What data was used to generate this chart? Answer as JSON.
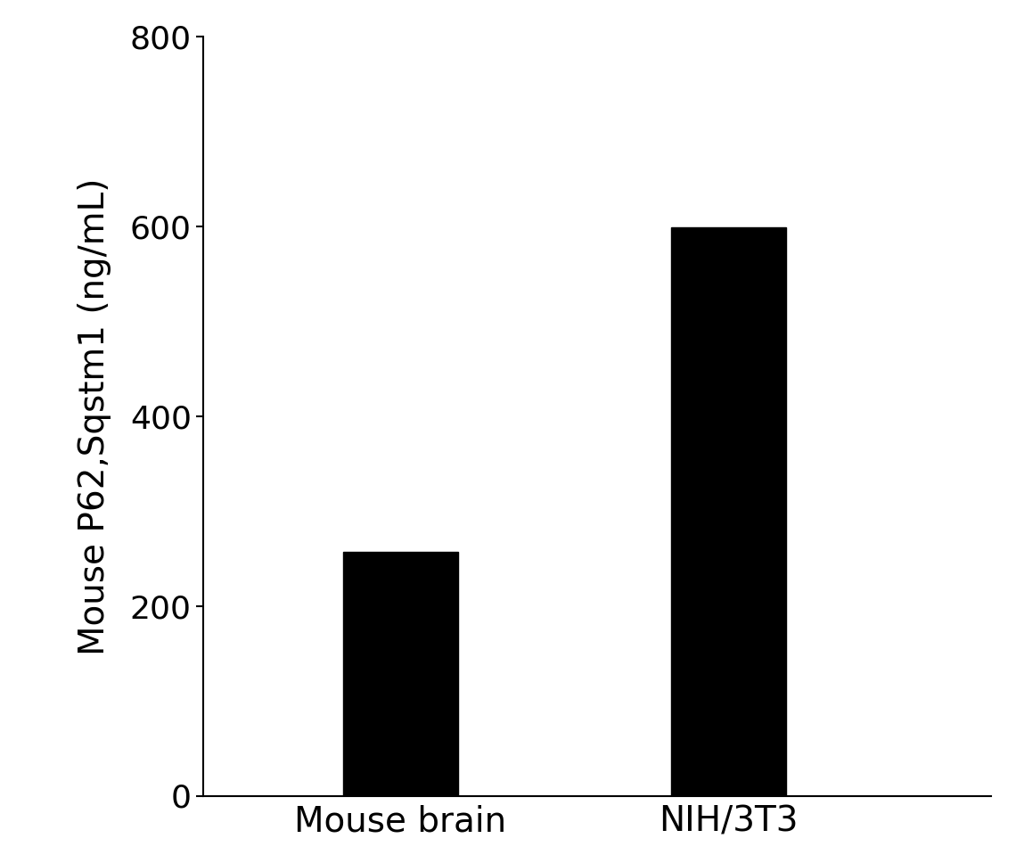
{
  "categories": [
    "Mouse brain",
    "NIH/3T3"
  ],
  "values": [
    257.13,
    598.93
  ],
  "bar_color": "#000000",
  "ylabel": "Mouse P62,Sqstm1 (ng/mL)",
  "ylim": [
    0,
    800
  ],
  "yticks": [
    0,
    200,
    400,
    600,
    800
  ],
  "bar_width": 0.35,
  "background_color": "#ffffff",
  "ylabel_fontsize": 28,
  "tick_fontsize": 26,
  "xtick_fontsize": 28,
  "x_positions": [
    1,
    2
  ],
  "xlim": [
    0.4,
    2.8
  ]
}
